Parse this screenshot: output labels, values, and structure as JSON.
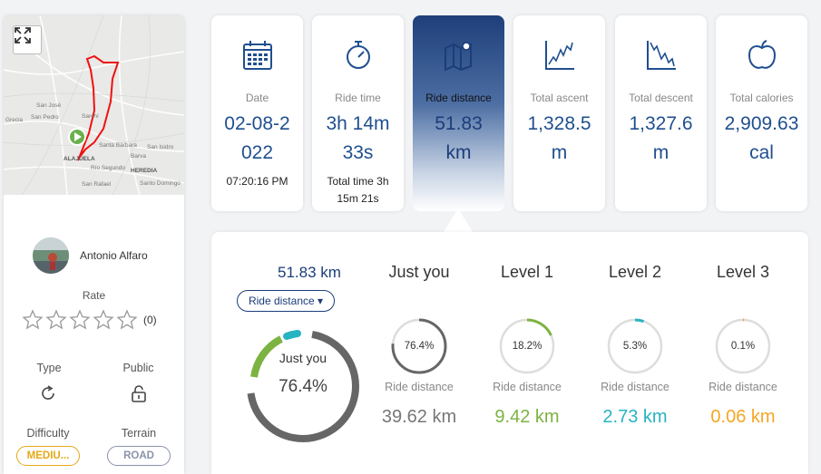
{
  "map": {
    "labels": [
      "San José",
      "Grecia",
      "San Pedro",
      "Sarchí",
      "ALAJUELA",
      "Santa Bárbara",
      "Río Segundo",
      "Barva",
      "HEREDIA",
      "San Isidro",
      "San Rafael",
      "Santo Domingo"
    ]
  },
  "user": {
    "name": "Antonio Alfaro"
  },
  "rating": {
    "label": "Rate",
    "count": "(0)",
    "stars": 0,
    "max": 5
  },
  "type": {
    "label": "Type"
  },
  "public": {
    "label": "Public"
  },
  "difficulty": {
    "label": "Difficulty",
    "value": "MEDIU...",
    "color": "#e6a817"
  },
  "terrain": {
    "label": "Terrain",
    "value": "ROAD",
    "color": "#8a93a8"
  },
  "stats": [
    {
      "icon": "calendar-icon",
      "label": "Date",
      "value": "02-08-2\n022",
      "sub": "07:20:16 PM"
    },
    {
      "icon": "stopwatch-icon",
      "label": "Ride time",
      "value": "3h 14m\n33s",
      "sub": "Total time 3h\n15m 21s"
    },
    {
      "icon": "map-icon",
      "label": "Ride distance",
      "value": "51.83\nkm",
      "sub": "",
      "active": true
    },
    {
      "icon": "ascent-chart-icon",
      "label": "Total ascent",
      "value": "1,328.5\nm",
      "sub": ""
    },
    {
      "icon": "descent-chart-icon",
      "label": "Total descent",
      "value": "1,327.6\nm",
      "sub": ""
    },
    {
      "icon": "apple-icon",
      "label": "Total calories",
      "value": "2,909.63\ncal",
      "sub": ""
    }
  ],
  "detail": {
    "total": "51.83 km",
    "metric_dropdown": "Ride distance ▾",
    "big_ring": {
      "label": "Just you",
      "pct_text": "76.4%",
      "pct": 76.4
    },
    "columns": [
      {
        "head": "Just you",
        "pct_text": "76.4%",
        "pct": 76.4,
        "color": "#666666",
        "metric": "Ride distance",
        "value": "39.62 km"
      },
      {
        "head": "Level 1",
        "pct_text": "18.2%",
        "pct": 18.2,
        "color": "#7cb342",
        "metric": "Ride distance",
        "value": "9.42 km"
      },
      {
        "head": "Level 2",
        "pct_text": "5.3%",
        "pct": 5.3,
        "color": "#26b3c2",
        "metric": "Ride distance",
        "value": "2.73 km"
      },
      {
        "head": "Level 3",
        "pct_text": "0.1%",
        "pct": 0.1,
        "color": "#f5a623",
        "metric": "Ride distance",
        "value": "0.06 km"
      }
    ],
    "text_colors": [
      "#777777",
      "#7cb342",
      "#26b3c2",
      "#f5a623"
    ]
  }
}
